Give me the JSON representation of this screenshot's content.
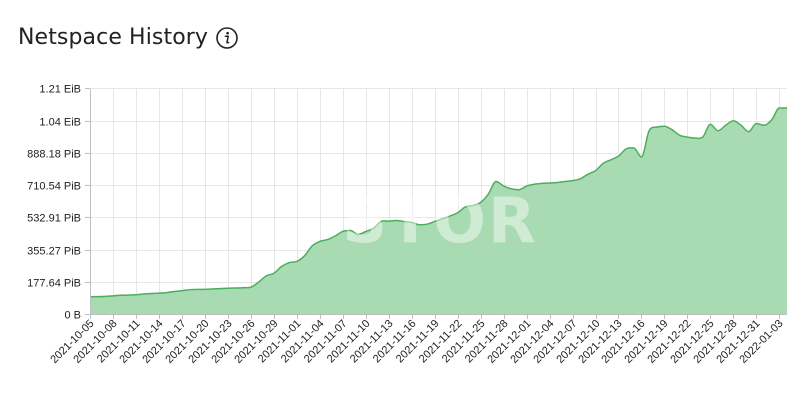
{
  "header": {
    "title": "Netspace History",
    "info_icon": "info-circle-icon"
  },
  "watermark": "STOR",
  "colors": {
    "area_fill": "#a8dbb1",
    "area_line": "#4cae5c",
    "grid": "#e6e6e6",
    "axis": "#bfbfbf"
  },
  "chart_data": {
    "type": "area",
    "title": "Netspace History",
    "xlabel": "",
    "ylabel": "",
    "grid": true,
    "legend": "none",
    "y_unit": "PiB",
    "ylim": [
      0,
      1240
    ],
    "yticks": [
      {
        "label": "0 B",
        "value": 0
      },
      {
        "label": "177.64 PiB",
        "value": 177.64
      },
      {
        "label": "355.27 PiB",
        "value": 355.27
      },
      {
        "label": "532.91 PiB",
        "value": 532.91
      },
      {
        "label": "710.54 PiB",
        "value": 710.54
      },
      {
        "label": "888.18 PiB",
        "value": 888.18
      },
      {
        "label": "1.04 EiB",
        "value": 1065.8
      },
      {
        "label": "1.21 EiB",
        "value": 1243.5
      }
    ],
    "xlim": [
      "2021-10-05",
      "2022-01-04"
    ],
    "xticks": [
      "2021-10-05",
      "2021-10-08",
      "2021-10-11",
      "2021-10-14",
      "2021-10-17",
      "2021-10-20",
      "2021-10-23",
      "2021-10-26",
      "2021-10-29",
      "2021-11-01",
      "2021-11-04",
      "2021-11-07",
      "2021-11-10",
      "2021-11-13",
      "2021-11-16",
      "2021-11-19",
      "2021-11-22",
      "2021-11-25",
      "2021-11-28",
      "2021-12-01",
      "2021-12-04",
      "2021-12-07",
      "2021-12-10",
      "2021-12-13",
      "2021-12-16",
      "2021-12-19",
      "2021-12-22",
      "2021-12-25",
      "2021-12-28",
      "2021-12-31",
      "2022-01-03"
    ],
    "series": [
      {
        "x": [
          "2021-10-05",
          "2021-10-07",
          "2021-10-08",
          "2021-10-09",
          "2021-10-11",
          "2021-10-12",
          "2021-10-14",
          "2021-10-15",
          "2021-10-16",
          "2021-10-17",
          "2021-10-18",
          "2021-10-20",
          "2021-10-21",
          "2021-10-22",
          "2021-10-23",
          "2021-10-25",
          "2021-10-26",
          "2021-10-27",
          "2021-10-28",
          "2021-10-29",
          "2021-10-30",
          "2021-10-31",
          "2021-11-01",
          "2021-11-02",
          "2021-11-03",
          "2021-11-04",
          "2021-11-05",
          "2021-11-06",
          "2021-11-07",
          "2021-11-08",
          "2021-11-09",
          "2021-11-10",
          "2021-11-11",
          "2021-11-12",
          "2021-11-13",
          "2021-11-14",
          "2021-11-15",
          "2021-11-16",
          "2021-11-17",
          "2021-11-18",
          "2021-11-19",
          "2021-11-20",
          "2021-11-21",
          "2021-11-22",
          "2021-11-23",
          "2021-11-24",
          "2021-11-25",
          "2021-11-26",
          "2021-11-27",
          "2021-11-28",
          "2021-11-29",
          "2021-11-30",
          "2021-12-01",
          "2021-12-02",
          "2021-12-03",
          "2021-12-04",
          "2021-12-05",
          "2021-12-06",
          "2021-12-07",
          "2021-12-08",
          "2021-12-09",
          "2021-12-10",
          "2021-12-11",
          "2021-12-12",
          "2021-12-13",
          "2021-12-14",
          "2021-12-15",
          "2021-12-16",
          "2021-12-17",
          "2021-12-18",
          "2021-12-19",
          "2021-12-20",
          "2021-12-21",
          "2021-12-22",
          "2021-12-23",
          "2021-12-24",
          "2021-12-25",
          "2021-12-26",
          "2021-12-27",
          "2021-12-28",
          "2021-12-29",
          "2021-12-30",
          "2021-12-31",
          "2022-01-01",
          "2022-01-02",
          "2022-01-03",
          "2022-01-04"
        ],
        "y": [
          95,
          97,
          100,
          103,
          106,
          110,
          115,
          118,
          124,
          128,
          134,
          136,
          138,
          140,
          142,
          145,
          148,
          175,
          210,
          224,
          262,
          283,
          290,
          320,
          375,
          400,
          410,
          430,
          455,
          460,
          438,
          455,
          472,
          510,
          512,
          515,
          510,
          505,
          492,
          495,
          510,
          525,
          540,
          558,
          590,
          598,
          615,
          660,
          730,
          706,
          690,
          685,
          705,
          715,
          720,
          722,
          725,
          730,
          735,
          745,
          770,
          790,
          830,
          850,
          870,
          910,
          915,
          865,
          1010,
          1030,
          1035,
          1015,
          985,
          975,
          970,
          975,
          1045,
          1010,
          1040,
          1065,
          1040,
          1005,
          1050,
          1040,
          1070,
          1135,
          1135
        ]
      }
    ]
  }
}
